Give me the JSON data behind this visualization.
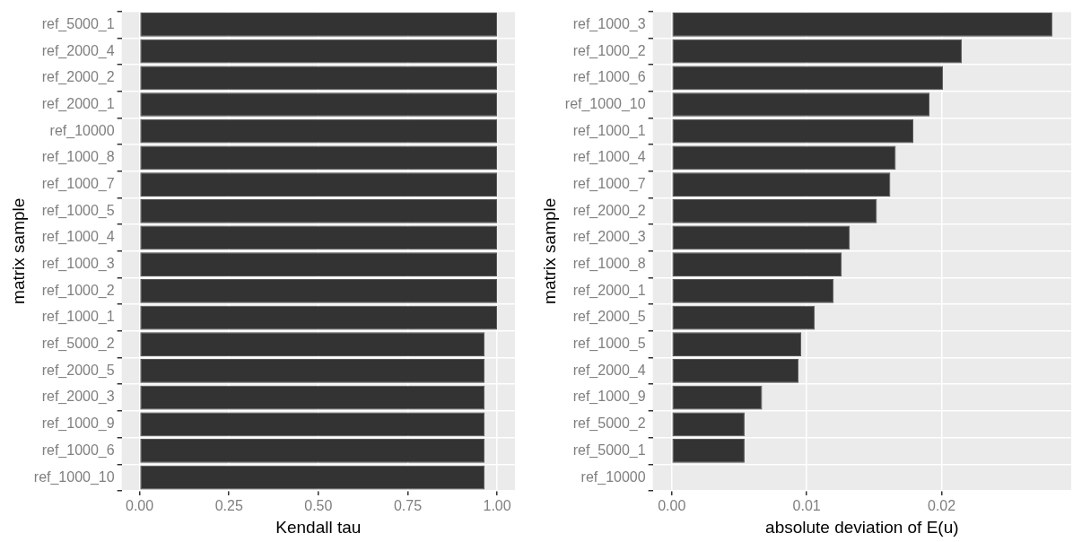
{
  "chart_data": [
    {
      "type": "bar",
      "orientation": "horizontal",
      "xlabel": "Kendall tau",
      "ylabel": "matrix sample",
      "grid": true,
      "legend": false,
      "color": "#333333",
      "categories": [
        "ref_5000_1",
        "ref_2000_4",
        "ref_2000_2",
        "ref_2000_1",
        "ref_10000",
        "ref_1000_8",
        "ref_1000_7",
        "ref_1000_5",
        "ref_1000_4",
        "ref_1000_3",
        "ref_1000_2",
        "ref_1000_1",
        "ref_5000_2",
        "ref_2000_5",
        "ref_2000_3",
        "ref_1000_9",
        "ref_1000_6",
        "ref_1000_10"
      ],
      "values": [
        1,
        1,
        1,
        1,
        1,
        1,
        1,
        1,
        1,
        1,
        1,
        1,
        0.965,
        0.965,
        0.965,
        0.965,
        0.965,
        0.965
      ],
      "xlim": [
        -0.05,
        1.05
      ],
      "xticks": [
        {
          "value": 0,
          "label": "0.00"
        },
        0.25,
        {
          "value": 0.5,
          "label": "0.50"
        },
        0.75,
        {
          "value": 1,
          "label": "1.00"
        }
      ]
    },
    {
      "type": "bar",
      "orientation": "horizontal",
      "xlabel": "absolute deviation of E(u)",
      "ylabel": "matrix sample",
      "grid": true,
      "legend": false,
      "color": "#333333",
      "categories": [
        "ref_1000_3",
        "ref_1000_2",
        "ref_1000_6",
        "ref_1000_10",
        "ref_1000_1",
        "ref_1000_4",
        "ref_1000_7",
        "ref_2000_2",
        "ref_2000_3",
        "ref_1000_8",
        "ref_2000_1",
        "ref_2000_5",
        "ref_1000_5",
        "ref_2000_4",
        "ref_1000_9",
        "ref_5000_2",
        "ref_5000_1",
        "ref_10000"
      ],
      "values": [
        0.0282,
        0.0215,
        0.0201,
        0.0191,
        0.0179,
        0.0166,
        0.0162,
        0.0152,
        0.0132,
        0.0126,
        0.012,
        0.0106,
        0.0096,
        0.0094,
        0.0067,
        0.0054,
        0.0054,
        0
      ],
      "xlim": [
        -0.0014,
        0.0296
      ],
      "xticks": [
        {
          "value": 0,
          "label": "0.00"
        },
        0.01,
        0.02
      ]
    }
  ]
}
